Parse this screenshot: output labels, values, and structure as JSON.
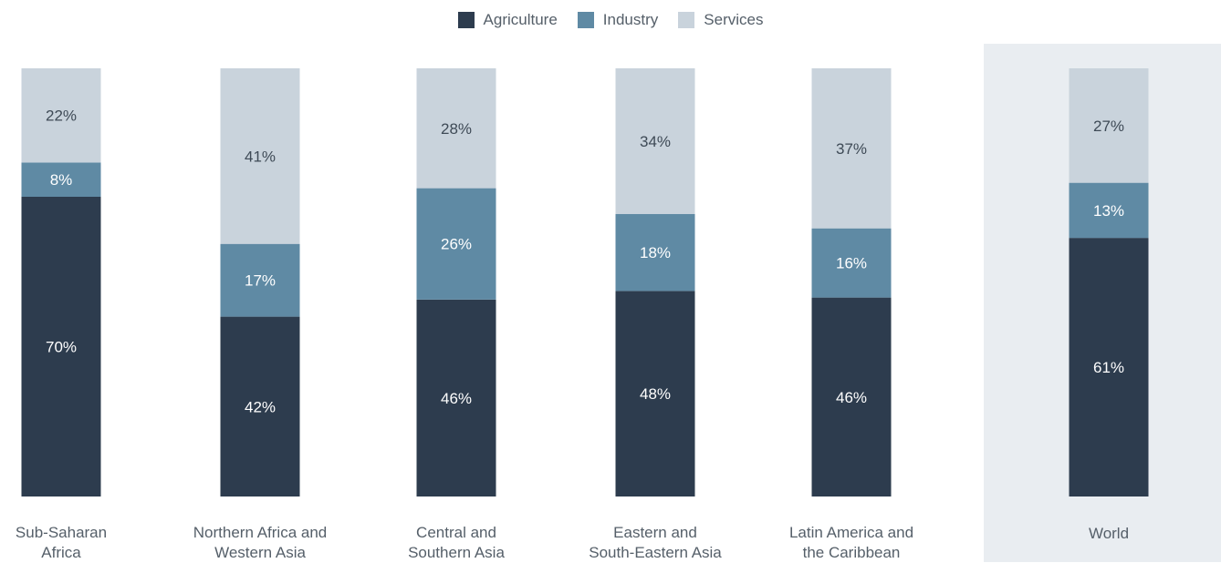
{
  "chart_data": {
    "type": "bar",
    "stacked": true,
    "orientation": "vertical",
    "value_format": "percent",
    "categories": [
      [
        "Sub-Saharan",
        "Africa"
      ],
      [
        "Northern Africa and",
        "Western Asia"
      ],
      [
        "Central and",
        "Southern Asia"
      ],
      [
        "Eastern and",
        "South-Eastern Asia"
      ],
      [
        "Latin America and",
        "the Caribbean"
      ],
      [
        "World"
      ]
    ],
    "highlighted_category": "World",
    "series": [
      {
        "name": "Agriculture",
        "color": "#2d3c4e",
        "label_color": "#ffffff",
        "values": [
          70,
          42,
          46,
          48,
          46,
          61
        ]
      },
      {
        "name": "Industry",
        "color": "#5f8aa4",
        "label_color": "#ffffff",
        "values": [
          8,
          17,
          26,
          18,
          16,
          13
        ]
      },
      {
        "name": "Services",
        "color": "#c9d3dc",
        "label_color": "#3e4a56",
        "values": [
          22,
          41,
          28,
          34,
          37,
          27
        ]
      }
    ],
    "highlight_color": "#e9edf1",
    "legend": "top-center",
    "grid": false
  }
}
